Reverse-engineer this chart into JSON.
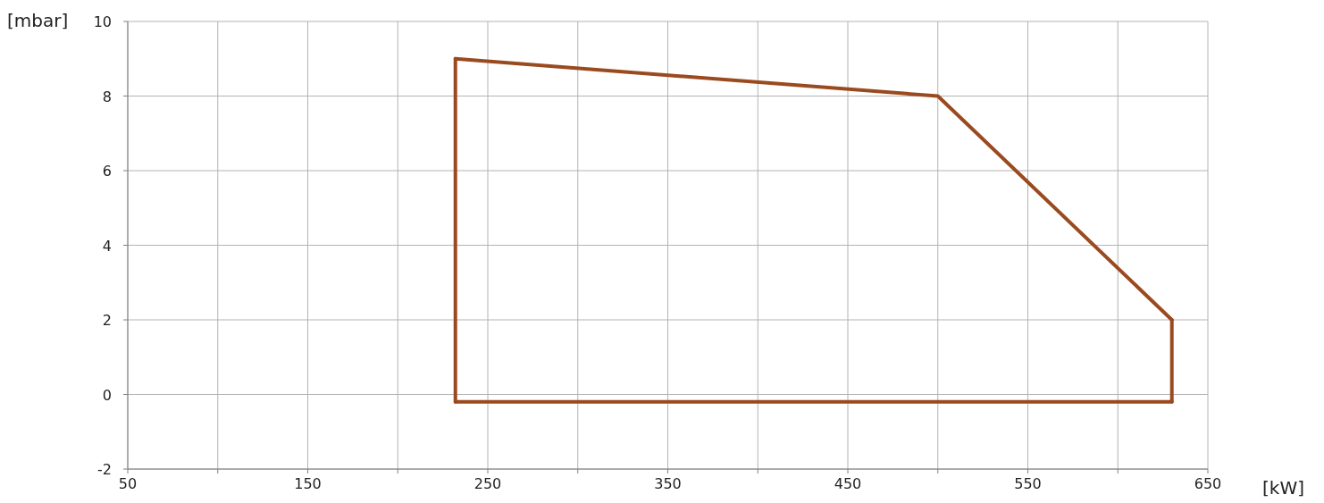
{
  "chart_data": {
    "type": "line",
    "xlabel": "[kW]",
    "ylabel": "[mbar]",
    "series": [
      {
        "color": "#9a4a1f",
        "x": [
          232,
          500,
          630
        ],
        "values": [
          9,
          8,
          2
        ]
      },
      {
        "color": "#9a4a1f",
        "x": [
          232,
          630
        ],
        "values": [
          -0.2,
          -0.2
        ]
      },
      {
        "color": "#9a4a1f",
        "x": [
          232,
          232
        ],
        "values": [
          -0.2,
          9
        ]
      },
      {
        "color": "#9a4a1f",
        "x": [
          630,
          630
        ],
        "values": [
          -0.2,
          2
        ]
      }
    ],
    "xlim": [
      50,
      650
    ],
    "xticks": [
      50,
      {
        "value": 100,
        "label": null
      },
      150,
      {
        "value": 200,
        "label": null
      },
      250,
      {
        "value": 300,
        "label": null
      },
      350,
      {
        "value": 400,
        "label": null
      },
      450,
      {
        "value": 500,
        "label": null
      },
      550,
      {
        "value": 600,
        "label": null
      },
      650
    ],
    "ylim": [
      -2,
      10
    ],
    "yticks": [
      -2,
      0,
      2,
      4,
      6,
      8,
      10
    ],
    "grid": true,
    "marker": "none",
    "line_style": "solid"
  }
}
